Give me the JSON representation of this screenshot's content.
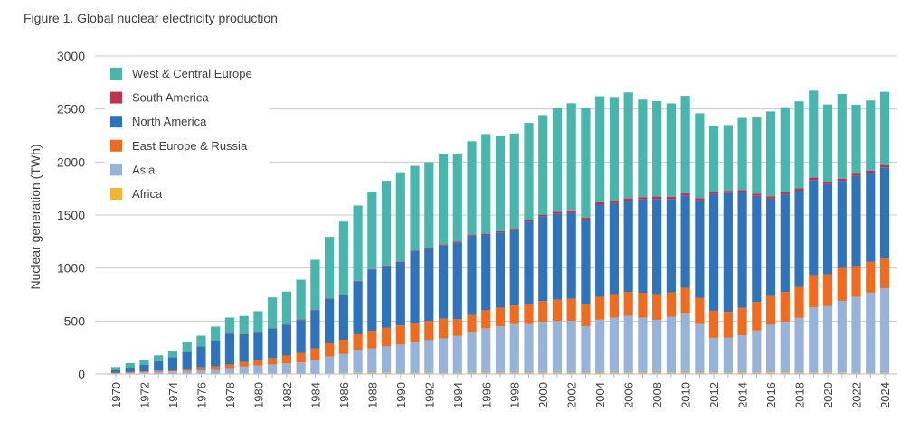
{
  "figure": {
    "title": "Figure 1. Global nuclear electricity production"
  },
  "chart_data": {
    "type": "bar",
    "stacked": true,
    "title": "Figure 1. Global nuclear electricity production",
    "xlabel": "",
    "ylabel": "Nuclear generation (TWh)",
    "ylim": [
      0,
      3000
    ],
    "yticks": [
      0,
      500,
      1000,
      1500,
      2000,
      2500,
      3000
    ],
    "grid": "horizontal",
    "legend_position": "top-left",
    "categories": [
      1970,
      1971,
      1972,
      1973,
      1974,
      1975,
      1976,
      1977,
      1978,
      1979,
      1980,
      1981,
      1982,
      1983,
      1984,
      1985,
      1986,
      1987,
      1988,
      1989,
      1990,
      1991,
      1992,
      1993,
      1994,
      1995,
      1996,
      1997,
      1998,
      1999,
      2000,
      2001,
      2002,
      2003,
      2004,
      2005,
      2006,
      2007,
      2008,
      2009,
      2010,
      2011,
      2012,
      2013,
      2014,
      2015,
      2016,
      2017,
      2018,
      2019,
      2020,
      2021,
      2022,
      2023,
      2024
    ],
    "xtick_labels": [
      "1970",
      "1972",
      "1974",
      "1976",
      "1978",
      "1980",
      "1982",
      "1984",
      "1986",
      "1988",
      "1990",
      "1992",
      "1994",
      "1996",
      "1998",
      "2000",
      "2002",
      "2004",
      "2006",
      "2008",
      "2010",
      "2012",
      "2014",
      "2016",
      "2018",
      "2020",
      "2022",
      "2024"
    ],
    "series": [
      {
        "name": "Africa",
        "color": "#f4b331",
        "values": [
          0,
          0,
          0,
          0,
          0,
          0,
          0,
          0,
          0,
          0,
          0,
          0,
          0,
          0,
          3,
          5,
          9,
          10,
          11,
          11,
          8,
          9,
          10,
          7,
          9,
          11,
          12,
          12,
          12,
          12,
          13,
          11,
          12,
          12,
          13,
          12,
          10,
          12,
          12,
          11,
          12,
          12,
          12,
          12,
          14,
          11,
          15,
          15,
          10,
          11,
          11,
          11,
          9,
          8,
          10
        ]
      },
      {
        "name": "Asia",
        "color": "#98b3d9",
        "values": [
          5,
          10,
          15,
          20,
          25,
          30,
          40,
          45,
          55,
          70,
          80,
          90,
          100,
          110,
          130,
          160,
          180,
          220,
          230,
          250,
          270,
          290,
          310,
          330,
          350,
          380,
          420,
          440,
          460,
          460,
          480,
          490,
          490,
          440,
          500,
          520,
          540,
          520,
          500,
          530,
          560,
          460,
          330,
          330,
          350,
          400,
          450,
          480,
          520,
          620,
          630,
          680,
          720,
          760,
          800
        ]
      },
      {
        "name": "East Europe & Russia",
        "color": "#ee6b1f",
        "values": [
          5,
          8,
          10,
          12,
          15,
          18,
          22,
          28,
          35,
          45,
          50,
          60,
          75,
          90,
          110,
          125,
          135,
          145,
          165,
          175,
          180,
          180,
          180,
          185,
          160,
          165,
          170,
          175,
          175,
          185,
          195,
          200,
          210,
          210,
          215,
          220,
          225,
          235,
          240,
          230,
          240,
          245,
          255,
          245,
          260,
          270,
          270,
          280,
          290,
          300,
          300,
          310,
          290,
          290,
          280
        ]
      },
      {
        "name": "North America",
        "color": "#2f73bb",
        "values": [
          25,
          45,
          60,
          90,
          120,
          160,
          200,
          235,
          290,
          260,
          260,
          280,
          290,
          310,
          360,
          420,
          420,
          500,
          580,
          580,
          600,
          680,
          680,
          690,
          720,
          750,
          710,
          710,
          710,
          780,
          800,
          810,
          810,
          790,
          870,
          860,
          860,
          880,
          900,
          880,
          870,
          920,
          1100,
          1120,
          1090,
          1000,
          920,
          920,
          910,
          900,
          850,
          820,
          850,
          840,
          860
        ]
      },
      {
        "name": "South America",
        "color": "#c1334d",
        "values": [
          0,
          0,
          0,
          0,
          0,
          0,
          0,
          0,
          3,
          3,
          3,
          3,
          3,
          5,
          5,
          5,
          5,
          5,
          5,
          7,
          5,
          5,
          8,
          10,
          10,
          10,
          12,
          12,
          12,
          12,
          15,
          20,
          22,
          22,
          22,
          22,
          22,
          22,
          22,
          22,
          22,
          22,
          22,
          22,
          22,
          22,
          22,
          22,
          22,
          22,
          22,
          22,
          22,
          22,
          22
        ]
      },
      {
        "name": "West & Central Europe",
        "color": "#49b6ae",
        "values": [
          30,
          40,
          50,
          55,
          60,
          90,
          100,
          140,
          150,
          170,
          200,
          290,
          310,
          375,
          470,
          580,
          690,
          710,
          730,
          800,
          840,
          800,
          810,
          850,
          830,
          880,
          940,
          900,
          900,
          920,
          940,
          980,
          1010,
          1040,
          1000,
          980,
          1000,
          920,
          900,
          880,
          920,
          800,
          620,
          620,
          680,
          720,
          800,
          800,
          820,
          820,
          730,
          800,
          650,
          660,
          690
        ]
      }
    ]
  }
}
